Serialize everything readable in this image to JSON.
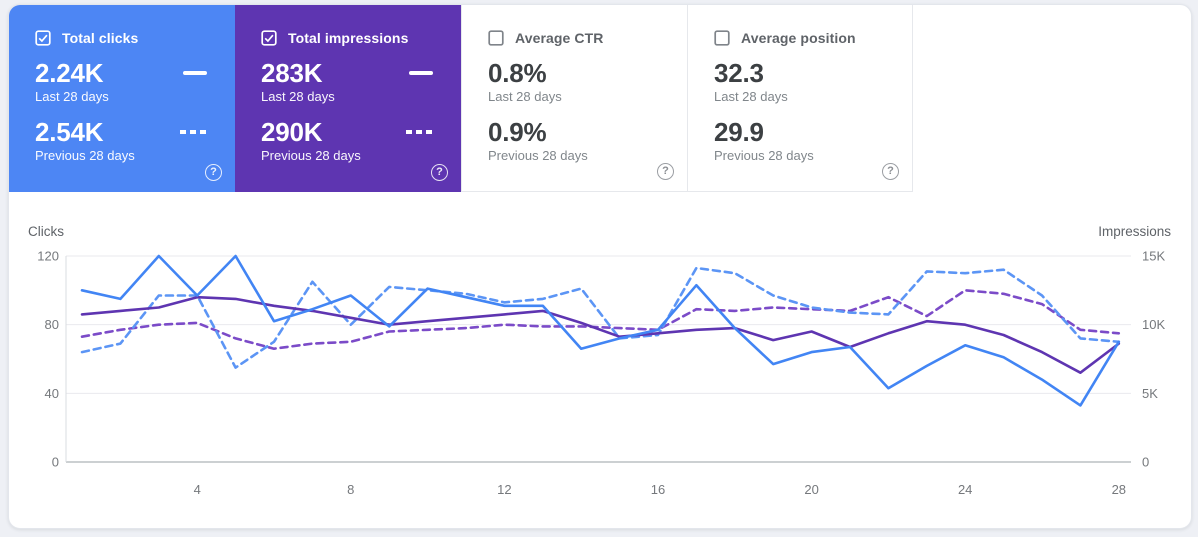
{
  "cards": [
    {
      "label": "Total clicks",
      "checked": true,
      "primary_value": "2.24K",
      "primary_caption": "Last 28 days",
      "secondary_value": "2.54K",
      "secondary_caption": "Previous 28 days",
      "bg": "#4d86f4"
    },
    {
      "label": "Total impressions",
      "checked": true,
      "primary_value": "283K",
      "primary_caption": "Last 28 days",
      "secondary_value": "290K",
      "secondary_caption": "Previous 28 days",
      "bg": "#5e35b1"
    },
    {
      "label": "Average CTR",
      "checked": false,
      "primary_value": "0.8%",
      "primary_caption": "Last 28 days",
      "secondary_value": "0.9%",
      "secondary_caption": "Previous 28 days",
      "bg": "#ffffff"
    },
    {
      "label": "Average position",
      "checked": false,
      "primary_value": "32.3",
      "primary_caption": "Last 28 days",
      "secondary_value": "29.9",
      "secondary_caption": "Previous 28 days",
      "bg": "#ffffff"
    }
  ],
  "icons": {
    "help": "?"
  },
  "chart_data": {
    "type": "line",
    "x": [
      1,
      2,
      3,
      4,
      5,
      6,
      7,
      8,
      9,
      10,
      11,
      12,
      13,
      14,
      15,
      16,
      17,
      18,
      19,
      20,
      21,
      22,
      23,
      24,
      25,
      26,
      27,
      28
    ],
    "x_tick_values": [
      4,
      8,
      12,
      16,
      20,
      24,
      28
    ],
    "x_tick_labels": [
      "4",
      "8",
      "12",
      "16",
      "20",
      "24",
      "28"
    ],
    "left_axis": {
      "title": "Clicks",
      "range": [
        0,
        120
      ],
      "tick_values": [
        0,
        40,
        80,
        120
      ],
      "tick_labels": [
        "0",
        "40",
        "80",
        "120"
      ]
    },
    "right_axis": {
      "title": "Impressions",
      "range": [
        0,
        15000
      ],
      "tick_values": [
        0,
        5000,
        10000,
        15000
      ],
      "tick_labels": [
        "0",
        "5K",
        "10K",
        "15K"
      ]
    },
    "grid": true,
    "legend": "none",
    "series": [
      {
        "name": "Total impressions - Previous 28 days",
        "axis": "right",
        "style": "dashed",
        "color": "#7b4bc8",
        "values": [
          9125,
          9625,
          10000,
          10125,
          9000,
          8250,
          8625,
          8750,
          9500,
          9625,
          9750,
          10000,
          9875,
          9875,
          9750,
          9625,
          11125,
          11000,
          11250,
          11125,
          11000,
          12000,
          10625,
          12500,
          12250,
          11500,
          9625,
          9375
        ]
      },
      {
        "name": "Total clicks - Previous 28 days",
        "axis": "left",
        "style": "dashed",
        "color": "#5c95f5",
        "values": [
          64,
          69,
          97,
          97,
          55,
          70,
          105,
          80,
          102,
          100,
          98,
          93,
          95,
          101,
          72,
          74,
          113,
          110,
          97,
          90,
          87,
          86,
          111,
          110,
          112,
          97,
          72,
          70
        ]
      },
      {
        "name": "Total impressions - Last 28 days",
        "axis": "right",
        "style": "solid",
        "color": "#5e35b1",
        "values": [
          10750,
          11000,
          11250,
          12000,
          11875,
          11375,
          11000,
          10500,
          10000,
          10250,
          10500,
          10750,
          11000,
          10125,
          9125,
          9375,
          9625,
          9750,
          8875,
          9500,
          8375,
          9375,
          10250,
          10000,
          9250,
          8000,
          6500,
          8625
        ]
      },
      {
        "name": "Total clicks - Last 28 days",
        "axis": "left",
        "style": "solid",
        "color": "#4285f4",
        "values": [
          100,
          95,
          120,
          97,
          120,
          82,
          89,
          97,
          79,
          101,
          96,
          91,
          91,
          66,
          72,
          77,
          103,
          78,
          57,
          64,
          67,
          43,
          56,
          68,
          61,
          48,
          33,
          70
        ]
      }
    ]
  }
}
